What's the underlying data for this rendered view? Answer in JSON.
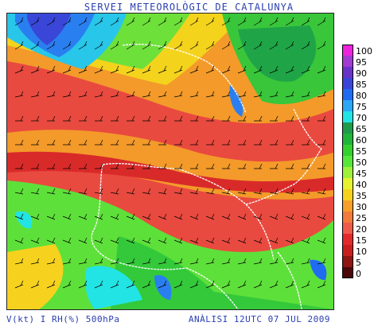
{
  "header": {
    "title": "SERVEI METEOROLÒGIC DE CATALUNYA"
  },
  "footer": {
    "variable": "V(kt) I RH(%) 500hPa",
    "analysis": "ANÀLISI 12UTC 07 JUL 2009"
  },
  "legend": {
    "items": [
      {
        "label": "100",
        "color": "#ee22dd"
      },
      {
        "label": "95",
        "color": "#a23bd1"
      },
      {
        "label": "90",
        "color": "#6a33c8"
      },
      {
        "label": "85",
        "color": "#3a46d8"
      },
      {
        "label": "80",
        "color": "#1f6cf2"
      },
      {
        "label": "75",
        "color": "#2aa8f6"
      },
      {
        "label": "70",
        "color": "#22e4e4"
      },
      {
        "label": "65",
        "color": "#1e9a4b"
      },
      {
        "label": "60",
        "color": "#1fb53a"
      },
      {
        "label": "55",
        "color": "#33d12e"
      },
      {
        "label": "50",
        "color": "#56e63a"
      },
      {
        "label": "45",
        "color": "#9ef03a"
      },
      {
        "label": "40",
        "color": "#e6f22e"
      },
      {
        "label": "35",
        "color": "#f6d21f"
      },
      {
        "label": "30",
        "color": "#f6a02a"
      },
      {
        "label": "25",
        "color": "#f27a3a"
      },
      {
        "label": "20",
        "color": "#ee5a4a"
      },
      {
        "label": "15",
        "color": "#e32a2a"
      },
      {
        "label": "10",
        "color": "#c81e1e"
      },
      {
        "label": "5",
        "color": "#8f1414"
      },
      {
        "label": "0",
        "color": "#4a0808"
      }
    ]
  }
}
